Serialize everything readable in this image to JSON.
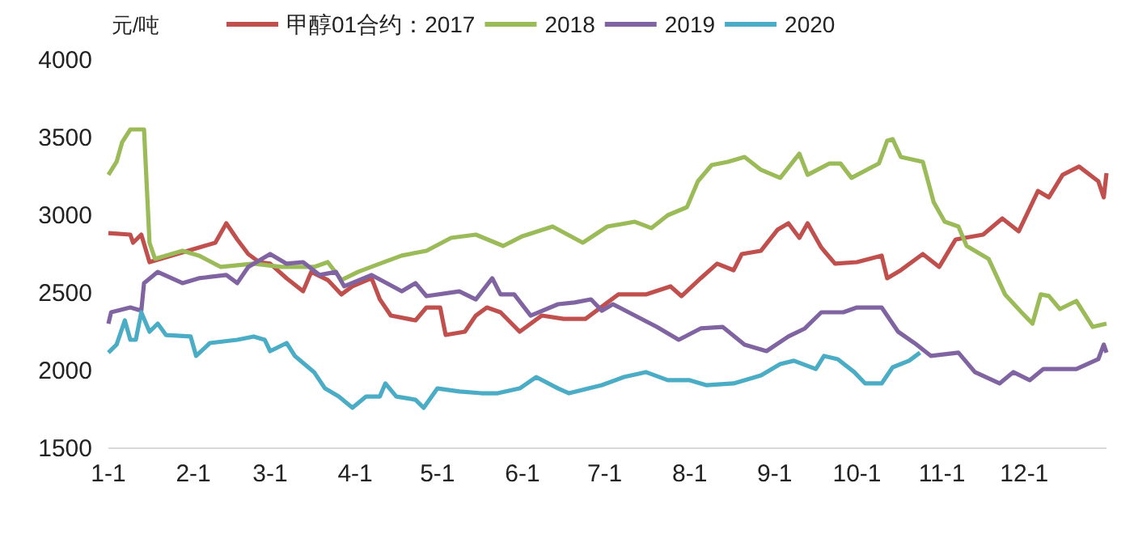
{
  "chart_data": {
    "type": "line",
    "ylabel": "元/吨",
    "ylim": [
      1500,
      4000
    ],
    "yticks": [
      1500,
      2000,
      2500,
      3000,
      3500,
      4000
    ],
    "xlim": [
      "--01-01",
      "--12-31"
    ],
    "xticks": [
      {
        "value": "--01-01",
        "label": "1-1"
      },
      {
        "value": "--02-01",
        "label": "2-1"
      },
      {
        "value": "--03-01",
        "label": "3-1"
      },
      {
        "value": "--04-01",
        "label": "4-1"
      },
      {
        "value": "--05-01",
        "label": "5-1"
      },
      {
        "value": "--06-01",
        "label": "6-1"
      },
      {
        "value": "--07-01",
        "label": "7-1"
      },
      {
        "value": "--08-01",
        "label": "8-1"
      },
      {
        "value": "--09-01",
        "label": "9-1"
      },
      {
        "value": "--10-01",
        "label": "10-1"
      },
      {
        "value": "--11-01",
        "label": "11-1"
      },
      {
        "value": "--12-01",
        "label": "12-1"
      }
    ],
    "legend": "top",
    "grid": false,
    "marker": "none",
    "line_style": "solid",
    "series": [
      {
        "name": "甲醇01合约：2017",
        "color": "#c0504d",
        "x": [
          "--01-01",
          "--01-09",
          "--01-10",
          "--01-13",
          "--01-16",
          "--01-26",
          "--02-05",
          "--02-09",
          "--02-13",
          "--02-17",
          "--02-21",
          "--02-25",
          "--03-01",
          "--03-07",
          "--03-13",
          "--03-16",
          "--03-22",
          "--03-27",
          "--03-31",
          "--04-07",
          "--04-10",
          "--04-14",
          "--04-23",
          "--04-27",
          "--05-02",
          "--05-04",
          "--05-11",
          "--05-15",
          "--05-19",
          "--05-24",
          "--05-31",
          "--06-08",
          "--06-16",
          "--06-24",
          "--07-06",
          "--07-16",
          "--07-25",
          "--07-29",
          "--08-05",
          "--08-11",
          "--08-17",
          "--08-20",
          "--08-27",
          "--09-02",
          "--09-06",
          "--09-10",
          "--09-13",
          "--09-18",
          "--09-23",
          "--10-01",
          "--10-10",
          "--10-12",
          "--10-17",
          "--10-25",
          "--10-31",
          "--11-06",
          "--11-16",
          "--11-23",
          "--11-29",
          "--12-06",
          "--12-10",
          "--12-15",
          "--12-21",
          "--12-28",
          "--12-30",
          "--12-31"
        ],
        "values": [
          2885,
          2875,
          2823,
          2875,
          2698,
          2750,
          2802,
          2823,
          2948,
          2844,
          2750,
          2698,
          2688,
          2594,
          2510,
          2635,
          2583,
          2490,
          2542,
          2594,
          2458,
          2354,
          2323,
          2406,
          2406,
          2229,
          2250,
          2354,
          2406,
          2375,
          2250,
          2354,
          2333,
          2333,
          2490,
          2490,
          2542,
          2479,
          2594,
          2688,
          2646,
          2750,
          2771,
          2906,
          2948,
          2854,
          2948,
          2792,
          2688,
          2698,
          2740,
          2594,
          2646,
          2750,
          2667,
          2844,
          2875,
          2979,
          2896,
          3156,
          3115,
          3260,
          3313,
          3219,
          3115,
          3271
        ]
      },
      {
        "name": "2018",
        "color": "#9bbb59",
        "x": [
          "--01-01",
          "--01-04",
          "--01-06",
          "--01-09",
          "--01-14",
          "--01-16",
          "--01-18",
          "--01-28",
          "--02-03",
          "--02-11",
          "--02-23",
          "--03-05",
          "--03-17",
          "--03-22",
          "--03-27",
          "--04-02",
          "--04-10",
          "--04-18",
          "--04-27",
          "--05-06",
          "--05-15",
          "--05-25",
          "--06-01",
          "--06-12",
          "--06-23",
          "--07-02",
          "--07-12",
          "--07-18",
          "--07-24",
          "--07-31",
          "--08-04",
          "--08-09",
          "--08-15",
          "--08-21",
          "--08-27",
          "--09-03",
          "--09-10",
          "--09-13",
          "--09-21",
          "--09-25",
          "--09-29",
          "--10-09",
          "--10-12",
          "--10-14",
          "--10-17",
          "--10-25",
          "--10-29",
          "--11-02",
          "--11-07",
          "--11-10",
          "--11-18",
          "--11-24",
          "--11-30",
          "--12-04",
          "--12-07",
          "--12-10",
          "--12-14",
          "--12-20",
          "--12-26",
          "--12-31"
        ],
        "values": [
          3260,
          3344,
          3469,
          3552,
          3552,
          2823,
          2719,
          2771,
          2740,
          2667,
          2688,
          2667,
          2667,
          2698,
          2583,
          2635,
          2688,
          2740,
          2771,
          2854,
          2875,
          2802,
          2865,
          2927,
          2823,
          2927,
          2958,
          2917,
          3000,
          3052,
          3219,
          3323,
          3344,
          3375,
          3292,
          3240,
          3396,
          3260,
          3333,
          3333,
          3240,
          3333,
          3479,
          3490,
          3375,
          3344,
          3083,
          2958,
          2927,
          2802,
          2719,
          2490,
          2375,
          2302,
          2490,
          2480,
          2396,
          2448,
          2281,
          2302
        ]
      },
      {
        "name": "2019",
        "color": "#8064a2",
        "x": [
          "--01-01",
          "--01-02",
          "--01-09",
          "--01-13",
          "--01-14",
          "--01-19",
          "--01-28",
          "--02-03",
          "--02-13",
          "--02-17",
          "--02-21",
          "--03-01",
          "--03-07",
          "--03-13",
          "--03-19",
          "--03-25",
          "--03-28",
          "--04-07",
          "--04-18",
          "--04-23",
          "--04-27",
          "--05-09",
          "--05-15",
          "--05-21",
          "--05-24",
          "--05-29",
          "--06-04",
          "--06-14",
          "--06-20",
          "--06-26",
          "--06-30",
          "--07-04",
          "--07-12",
          "--07-20",
          "--07-28",
          "--08-05",
          "--08-13",
          "--08-21",
          "--08-29",
          "--09-06",
          "--09-12",
          "--09-18",
          "--09-26",
          "--10-01",
          "--10-10",
          "--10-16",
          "--10-22",
          "--10-28",
          "--11-07",
          "--11-13",
          "--11-22",
          "--11-27",
          "--12-03",
          "--12-08",
          "--12-20",
          "--12-28",
          "--12-30",
          "--12-31"
        ],
        "values": [
          2302,
          2375,
          2406,
          2385,
          2563,
          2635,
          2563,
          2594,
          2615,
          2563,
          2667,
          2750,
          2688,
          2698,
          2615,
          2635,
          2542,
          2615,
          2510,
          2563,
          2479,
          2510,
          2458,
          2594,
          2490,
          2490,
          2354,
          2427,
          2438,
          2458,
          2385,
          2427,
          2354,
          2281,
          2198,
          2271,
          2281,
          2167,
          2125,
          2219,
          2271,
          2375,
          2375,
          2406,
          2406,
          2250,
          2177,
          2094,
          2115,
          1990,
          1917,
          1990,
          1938,
          2010,
          2010,
          2073,
          2167,
          2115
        ]
      },
      {
        "name": "2020",
        "color": "#4bacc6",
        "x": [
          "--01-01",
          "--01-04",
          "--01-07",
          "--01-09",
          "--01-11",
          "--01-13",
          "--01-16",
          "--01-19",
          "--01-22",
          "--01-31",
          "--02-02",
          "--02-07",
          "--02-17",
          "--02-23",
          "--02-27",
          "--03-01",
          "--03-07",
          "--03-10",
          "--03-17",
          "--03-21",
          "--03-26",
          "--03-31",
          "--04-05",
          "--04-10",
          "--04-12",
          "--04-16",
          "--04-23",
          "--04-26",
          "--05-01",
          "--05-09",
          "--05-17",
          "--05-23",
          "--05-31",
          "--06-06",
          "--06-14",
          "--06-18",
          "--06-30",
          "--07-08",
          "--07-16",
          "--07-24",
          "--08-01",
          "--08-07",
          "--08-17",
          "--08-27",
          "--09-03",
          "--09-08",
          "--09-16",
          "--09-19",
          "--09-24",
          "--09-30",
          "--10-04",
          "--10-10",
          "--10-14",
          "--10-20",
          "--10-24"
        ],
        "values": [
          2115,
          2167,
          2323,
          2198,
          2198,
          2375,
          2250,
          2302,
          2229,
          2219,
          2094,
          2177,
          2198,
          2219,
          2198,
          2125,
          2177,
          2094,
          1990,
          1885,
          1833,
          1760,
          1833,
          1833,
          1917,
          1833,
          1812,
          1760,
          1885,
          1865,
          1854,
          1854,
          1885,
          1958,
          1885,
          1854,
          1906,
          1958,
          1990,
          1938,
          1938,
          1906,
          1917,
          1969,
          2042,
          2063,
          2010,
          2094,
          2073,
          1990,
          1917,
          1917,
          2021,
          2063,
          2115
        ]
      }
    ]
  }
}
